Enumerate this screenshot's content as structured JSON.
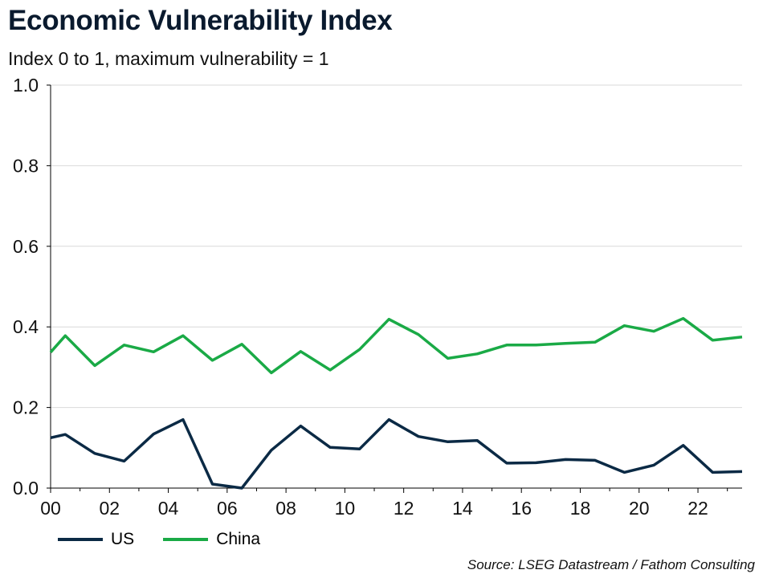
{
  "title": "Economic Vulnerability Index",
  "subtitle": "Index 0 to 1, maximum vulnerability = 1",
  "source": "Source: LSEG Datastream / Fathom Consulting",
  "colors": {
    "us": "#0b2a45",
    "china": "#1aaa46",
    "grid": "#d9d9d9",
    "axis": "#000000"
  },
  "chart_data": {
    "type": "line",
    "title": "Economic Vulnerability Index",
    "subtitle": "Index 0 to 1, maximum vulnerability = 1",
    "xlabel": "",
    "ylabel": "",
    "xlim": [
      2000,
      2023.5
    ],
    "ylim": [
      0,
      1
    ],
    "y_ticks": [
      0.0,
      0.2,
      0.4,
      0.6,
      0.8,
      1.0
    ],
    "y_tick_labels": [
      "0.0",
      "0.2",
      "0.4",
      "0.6",
      "0.8",
      "1.0"
    ],
    "x_ticks": [
      2000,
      2002,
      2004,
      2006,
      2008,
      2010,
      2012,
      2014,
      2016,
      2018,
      2020,
      2022
    ],
    "x_tick_labels": [
      "00",
      "02",
      "04",
      "06",
      "08",
      "10",
      "12",
      "14",
      "16",
      "18",
      "20",
      "22"
    ],
    "grid": "horizontal",
    "legend_position": "bottom-left",
    "x": [
      2000,
      2000.5,
      2001.5,
      2002.5,
      2003.5,
      2004.5,
      2005.5,
      2006.5,
      2007.5,
      2008.5,
      2009.5,
      2010.5,
      2011.5,
      2012.5,
      2013.5,
      2014.5,
      2015.5,
      2016.5,
      2017.5,
      2018.5,
      2019.5,
      2020.5,
      2021.5,
      2022.5,
      2023.5
    ],
    "series": [
      {
        "name": "US",
        "color": "#0b2a45",
        "values": [
          0.125,
          0.133,
          0.086,
          0.067,
          0.134,
          0.17,
          0.01,
          0.0,
          0.094,
          0.154,
          0.101,
          0.097,
          0.17,
          0.128,
          0.115,
          0.118,
          0.062,
          0.063,
          0.071,
          0.069,
          0.039,
          0.057,
          0.106,
          0.039,
          0.041
        ]
      },
      {
        "name": "China",
        "color": "#1aaa46",
        "values": [
          0.337,
          0.378,
          0.304,
          0.355,
          0.338,
          0.378,
          0.317,
          0.357,
          0.286,
          0.339,
          0.293,
          0.344,
          0.419,
          0.381,
          0.322,
          0.333,
          0.355,
          0.355,
          0.359,
          0.362,
          0.403,
          0.389,
          0.421,
          0.367,
          0.375
        ]
      }
    ]
  }
}
